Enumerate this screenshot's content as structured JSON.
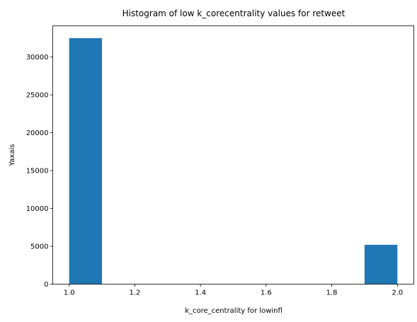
{
  "chart_data": {
    "type": "bar",
    "title": "Histogram of low k_corecentrality values for retweet",
    "xlabel": "k_core_centrality for lowinfl",
    "ylabel": "Yaxais",
    "bins": [
      {
        "x0": 1.0,
        "x1": 1.1,
        "value": 32500
      },
      {
        "x0": 1.1,
        "x1": 1.2,
        "value": 0
      },
      {
        "x0": 1.2,
        "x1": 1.3,
        "value": 0
      },
      {
        "x0": 1.3,
        "x1": 1.4,
        "value": 0
      },
      {
        "x0": 1.4,
        "x1": 1.5,
        "value": 0
      },
      {
        "x0": 1.5,
        "x1": 1.6,
        "value": 0
      },
      {
        "x0": 1.6,
        "x1": 1.7,
        "value": 0
      },
      {
        "x0": 1.7,
        "x1": 1.8,
        "value": 0
      },
      {
        "x0": 1.8,
        "x1": 1.9,
        "value": 0
      },
      {
        "x0": 1.9,
        "x1": 2.0,
        "value": 5200
      }
    ],
    "xlim": [
      0.95,
      2.05
    ],
    "ylim": [
      0,
      34125
    ],
    "xticks": [
      1.0,
      1.2,
      1.4,
      1.6,
      1.8,
      2.0
    ],
    "xtick_labels": [
      "1.0",
      "1.2",
      "1.4",
      "1.6",
      "1.8",
      "2.0"
    ],
    "yticks": [
      0,
      5000,
      10000,
      15000,
      20000,
      25000,
      30000
    ],
    "ytick_labels": [
      "0",
      "5000",
      "10000",
      "15000",
      "20000",
      "25000",
      "30000"
    ],
    "bar_color": "#1f77b4",
    "grid": false,
    "legend": "none"
  }
}
